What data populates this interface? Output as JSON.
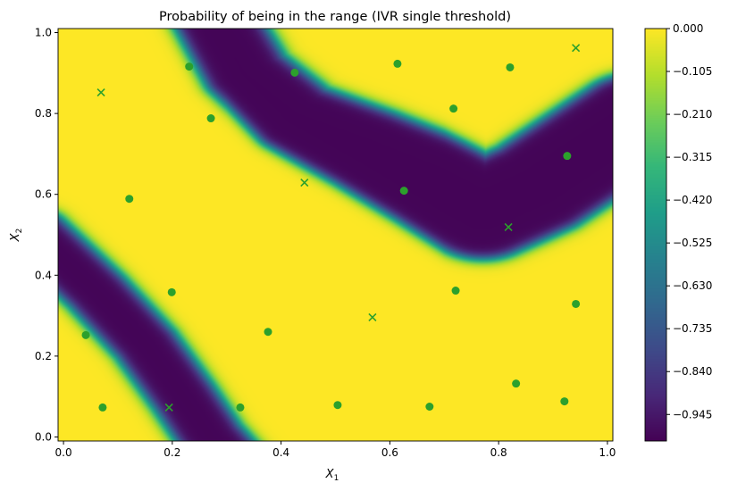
{
  "chart_data": {
    "type": "heatmap",
    "title": "Probability of being in the range (IVR single threshold)",
    "xlabel": "X",
    "xlabel_sub": "1",
    "ylabel": "X",
    "ylabel_sub": "2",
    "xlim": [
      -0.01,
      1.01
    ],
    "ylim": [
      -0.01,
      1.01
    ],
    "xticks": [
      "0.0",
      "0.2",
      "0.4",
      "0.6",
      "0.8",
      "1.0"
    ],
    "yticks": [
      "0.0",
      "0.2",
      "0.4",
      "0.6",
      "0.8",
      "1.0"
    ],
    "xtick_values": [
      0,
      0.2,
      0.4,
      0.6,
      0.8,
      1.0
    ],
    "ytick_values": [
      0,
      0.2,
      0.4,
      0.6,
      0.8,
      1.0
    ],
    "colormap": "viridis",
    "colorbar": {
      "range": [
        -1.01,
        0.0
      ],
      "ticks": [
        "0.000",
        "−0.105",
        "−0.210",
        "−0.315",
        "−0.420",
        "−0.525",
        "−0.630",
        "−0.735",
        "−0.840",
        "−0.945"
      ],
      "tick_values": [
        0,
        -0.105,
        -0.21,
        -0.315,
        -0.42,
        -0.525,
        -0.63,
        -0.735,
        -0.84,
        -0.945
      ]
    },
    "grid": false,
    "marker_color": "#2ca02c",
    "circle_points": [
      [
        0.231,
        0.916
      ],
      [
        0.425,
        0.901
      ],
      [
        0.614,
        0.923
      ],
      [
        0.821,
        0.914
      ],
      [
        0.717,
        0.812
      ],
      [
        0.271,
        0.788
      ],
      [
        0.926,
        0.695
      ],
      [
        0.121,
        0.589
      ],
      [
        0.626,
        0.609
      ],
      [
        0.199,
        0.358
      ],
      [
        0.721,
        0.362
      ],
      [
        0.942,
        0.329
      ],
      [
        0.041,
        0.252
      ],
      [
        0.376,
        0.26
      ],
      [
        0.072,
        0.073
      ],
      [
        0.325,
        0.073
      ],
      [
        0.504,
        0.079
      ],
      [
        0.673,
        0.075
      ],
      [
        0.832,
        0.132
      ],
      [
        0.921,
        0.088
      ]
    ],
    "cross_points": [
      [
        0.069,
        0.852
      ],
      [
        0.942,
        0.962
      ],
      [
        0.443,
        0.629
      ],
      [
        0.818,
        0.519
      ],
      [
        0.568,
        0.296
      ],
      [
        0.194,
        0.073
      ]
    ]
  }
}
